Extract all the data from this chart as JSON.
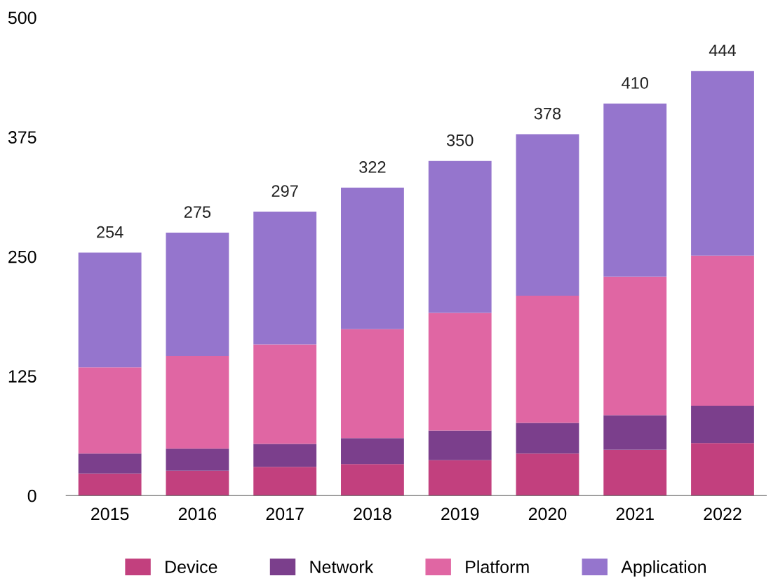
{
  "chart_data": {
    "type": "bar",
    "stacked": true,
    "categories": [
      "2015",
      "2016",
      "2017",
      "2018",
      "2019",
      "2020",
      "2021",
      "2022"
    ],
    "series": [
      {
        "name": "Device",
        "color": "#c2407e",
        "values": [
          23,
          26,
          30,
          33,
          37,
          44,
          48,
          55
        ]
      },
      {
        "name": "Network",
        "color": "#7b3f8c",
        "values": [
          21,
          23,
          24,
          27,
          31,
          32,
          36,
          39
        ]
      },
      {
        "name": "Platform",
        "color": "#e066a3",
        "values": [
          90,
          97,
          104,
          114,
          123,
          133,
          145,
          157
        ]
      },
      {
        "name": "Application",
        "color": "#9575cd",
        "values": [
          120,
          129,
          139,
          148,
          159,
          169,
          181,
          193
        ]
      }
    ],
    "totals": [
      "254",
      "275",
      "297",
      "322",
      "350",
      "378",
      "410",
      "444"
    ],
    "ylim": [
      0,
      500
    ],
    "yticks": [
      0,
      125,
      250,
      375,
      500
    ],
    "grid": false,
    "legend": "bottom"
  }
}
